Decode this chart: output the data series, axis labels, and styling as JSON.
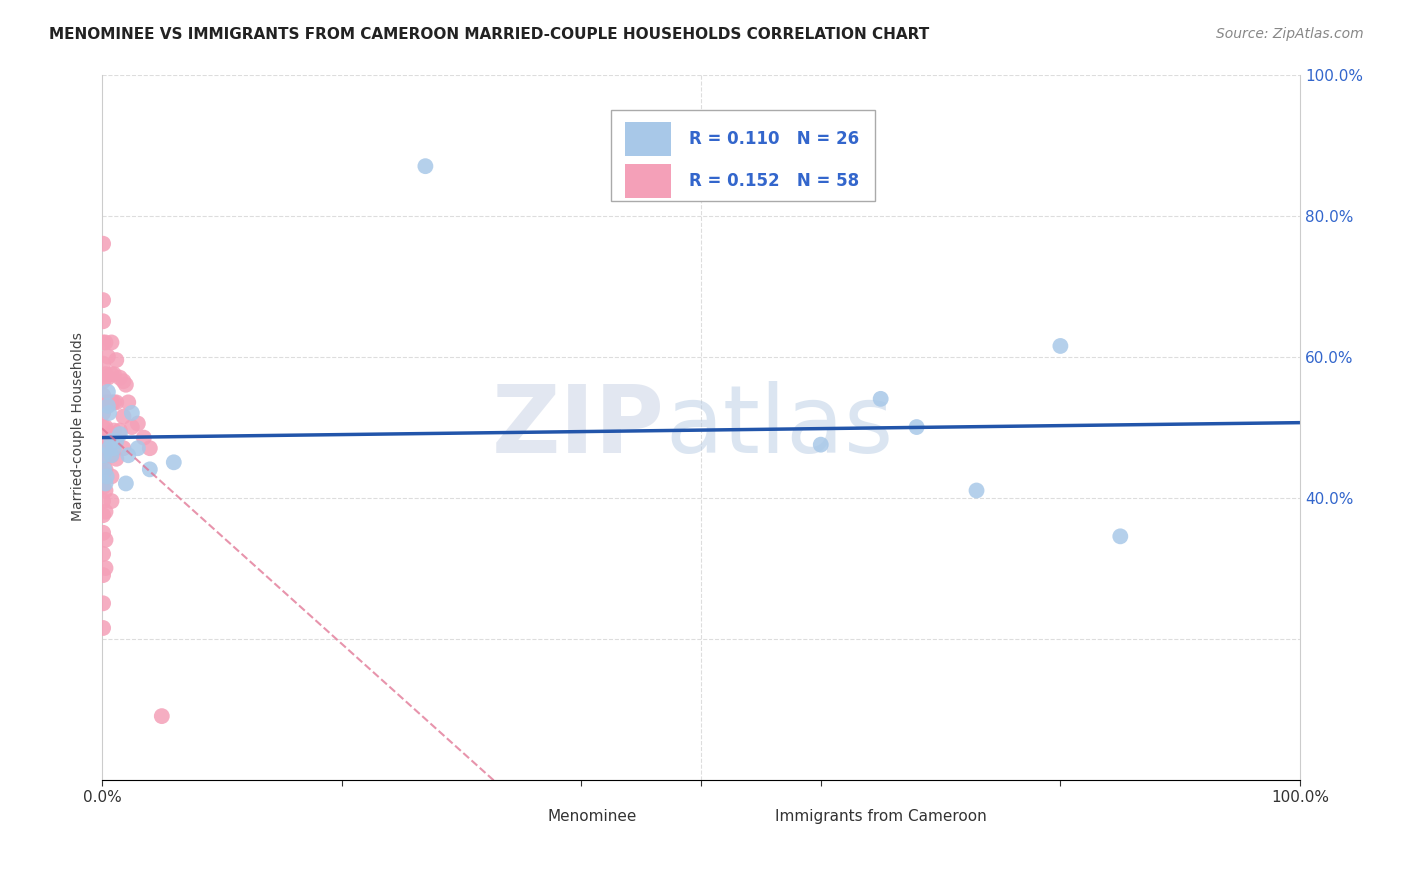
{
  "title": "MENOMINEE VS IMMIGRANTS FROM CAMEROON MARRIED-COUPLE HOUSEHOLDS CORRELATION CHART",
  "source": "Source: ZipAtlas.com",
  "ylabel": "Married-couple Households",
  "r_menominee": 0.11,
  "n_menominee": 26,
  "r_cameroon": 0.152,
  "n_cameroon": 58,
  "color_menominee": "#a8c8e8",
  "color_cameroon": "#f4a0b8",
  "line_color_menominee": "#2255aa",
  "line_color_cameroon": "#e07090",
  "watermark_zip": "ZIP",
  "watermark_atlas": "atlas",
  "menominee_points": [
    [
      0.002,
      0.44
    ],
    [
      0.002,
      0.46
    ],
    [
      0.003,
      0.42
    ],
    [
      0.004,
      0.43
    ],
    [
      0.005,
      0.53
    ],
    [
      0.005,
      0.55
    ],
    [
      0.006,
      0.52
    ],
    [
      0.006,
      0.47
    ],
    [
      0.008,
      0.46
    ],
    [
      0.008,
      0.48
    ],
    [
      0.01,
      0.47
    ],
    [
      0.012,
      0.48
    ],
    [
      0.015,
      0.49
    ],
    [
      0.02,
      0.42
    ],
    [
      0.022,
      0.46
    ],
    [
      0.025,
      0.52
    ],
    [
      0.03,
      0.47
    ],
    [
      0.04,
      0.44
    ],
    [
      0.06,
      0.45
    ],
    [
      0.27,
      0.87
    ],
    [
      0.6,
      0.475
    ],
    [
      0.65,
      0.54
    ],
    [
      0.68,
      0.5
    ],
    [
      0.73,
      0.41
    ],
    [
      0.8,
      0.615
    ],
    [
      0.85,
      0.345
    ]
  ],
  "cameroon_points": [
    [
      0.001,
      0.76
    ],
    [
      0.001,
      0.68
    ],
    [
      0.001,
      0.65
    ],
    [
      0.001,
      0.62
    ],
    [
      0.001,
      0.59
    ],
    [
      0.001,
      0.565
    ],
    [
      0.001,
      0.545
    ],
    [
      0.001,
      0.52
    ],
    [
      0.001,
      0.5
    ],
    [
      0.001,
      0.48
    ],
    [
      0.001,
      0.455
    ],
    [
      0.001,
      0.435
    ],
    [
      0.001,
      0.415
    ],
    [
      0.001,
      0.395
    ],
    [
      0.001,
      0.375
    ],
    [
      0.001,
      0.35
    ],
    [
      0.001,
      0.32
    ],
    [
      0.001,
      0.29
    ],
    [
      0.001,
      0.25
    ],
    [
      0.001,
      0.215
    ],
    [
      0.003,
      0.62
    ],
    [
      0.003,
      0.575
    ],
    [
      0.003,
      0.535
    ],
    [
      0.003,
      0.5
    ],
    [
      0.003,
      0.47
    ],
    [
      0.003,
      0.44
    ],
    [
      0.003,
      0.41
    ],
    [
      0.003,
      0.38
    ],
    [
      0.003,
      0.34
    ],
    [
      0.003,
      0.3
    ],
    [
      0.005,
      0.6
    ],
    [
      0.005,
      0.57
    ],
    [
      0.005,
      0.535
    ],
    [
      0.008,
      0.62
    ],
    [
      0.008,
      0.575
    ],
    [
      0.008,
      0.535
    ],
    [
      0.008,
      0.49
    ],
    [
      0.008,
      0.46
    ],
    [
      0.008,
      0.43
    ],
    [
      0.008,
      0.395
    ],
    [
      0.01,
      0.575
    ],
    [
      0.01,
      0.535
    ],
    [
      0.01,
      0.495
    ],
    [
      0.012,
      0.595
    ],
    [
      0.012,
      0.535
    ],
    [
      0.012,
      0.455
    ],
    [
      0.015,
      0.57
    ],
    [
      0.015,
      0.495
    ],
    [
      0.018,
      0.565
    ],
    [
      0.018,
      0.515
    ],
    [
      0.018,
      0.47
    ],
    [
      0.02,
      0.56
    ],
    [
      0.022,
      0.535
    ],
    [
      0.025,
      0.5
    ],
    [
      0.03,
      0.505
    ],
    [
      0.035,
      0.485
    ],
    [
      0.04,
      0.47
    ],
    [
      0.05,
      0.09
    ]
  ],
  "xlim": [
    0.0,
    1.0
  ],
  "ylim": [
    0.0,
    1.0
  ],
  "grid_color": "#dddddd",
  "background_color": "#ffffff",
  "legend_color_text": "#3366cc",
  "title_fontsize": 11,
  "axis_label_fontsize": 10
}
